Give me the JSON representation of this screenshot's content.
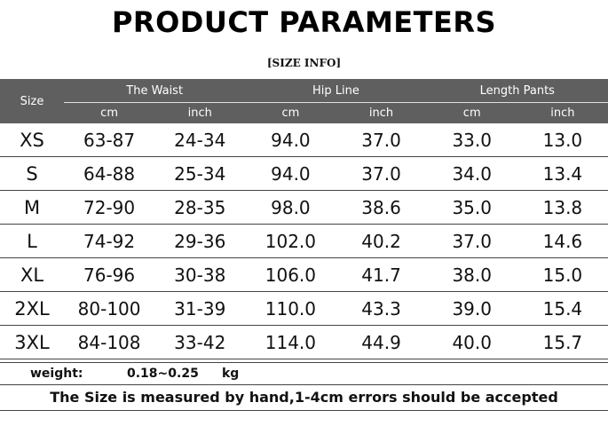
{
  "title": "PRODUCT PARAMETERS",
  "subtitle": "[SIZE INFO]",
  "table": {
    "size_header": "Size",
    "groups": [
      "The Waist",
      "Hip Line",
      "Length Pants"
    ],
    "units": [
      "cm",
      "inch",
      "cm",
      "inch",
      "cm",
      "inch"
    ],
    "rows": [
      [
        "XS",
        "63-87",
        "24-34",
        "94.0",
        "37.0",
        "33.0",
        "13.0"
      ],
      [
        "S",
        "64-88",
        "25-34",
        "94.0",
        "37.0",
        "34.0",
        "13.4"
      ],
      [
        "M",
        "72-90",
        "28-35",
        "98.0",
        "38.6",
        "35.0",
        "13.8"
      ],
      [
        "L",
        "74-92",
        "29-36",
        "102.0",
        "40.2",
        "37.0",
        "14.6"
      ],
      [
        "XL",
        "76-96",
        "30-38",
        "106.0",
        "41.7",
        "38.0",
        "15.0"
      ],
      [
        "2XL",
        "80-100",
        "31-39",
        "110.0",
        "43.3",
        "39.0",
        "15.4"
      ],
      [
        "3XL",
        "84-108",
        "33-42",
        "114.0",
        "44.9",
        "40.0",
        "15.7"
      ]
    ]
  },
  "weight": {
    "label": "weight:",
    "value": "0.18~0.25",
    "unit": "kg"
  },
  "note": "The Size is measured by hand,1-4cm errors should be accepted",
  "colors": {
    "header_bg": "#5f5f5f",
    "header_text": "#ffffff"
  }
}
